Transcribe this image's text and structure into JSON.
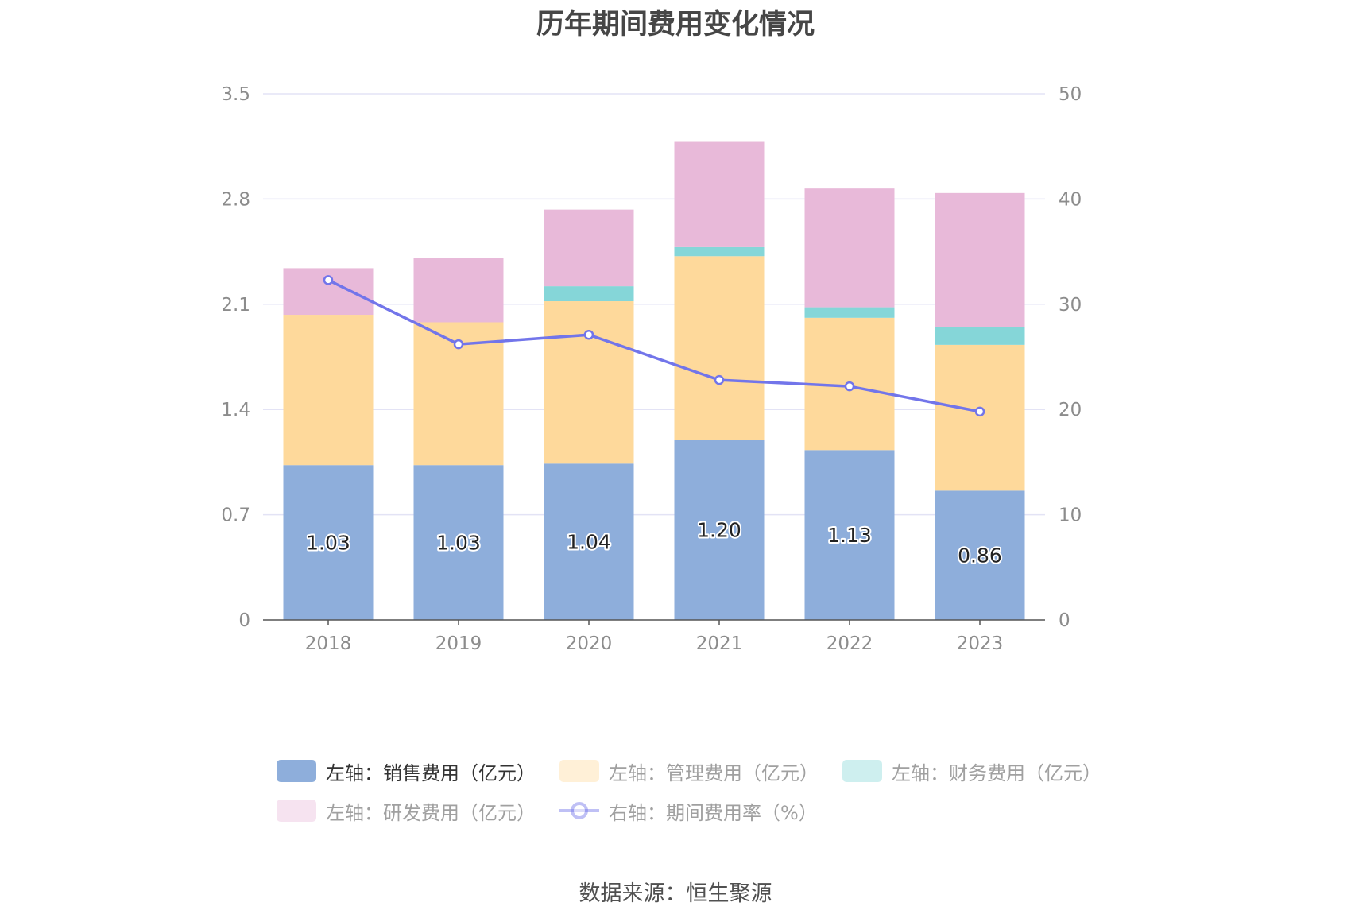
{
  "title": "历年期间费用变化情况",
  "source": "数据来源：恒生聚源",
  "chart_data": {
    "type": "bar",
    "stacked": true,
    "categories": [
      "2018",
      "2019",
      "2020",
      "2021",
      "2022",
      "2023"
    ],
    "series": [
      {
        "name": "左轴：销售费用（亿元）",
        "axis": "left",
        "type": "bar",
        "color": "#8eaedb",
        "values": [
          1.03,
          1.03,
          1.04,
          1.2,
          1.13,
          0.86
        ],
        "show_labels": true
      },
      {
        "name": "左轴：管理费用（亿元）",
        "axis": "left",
        "type": "bar",
        "color": "#fed99b",
        "values": [
          1.0,
          0.95,
          1.08,
          1.22,
          0.88,
          0.97
        ]
      },
      {
        "name": "左轴：财务费用（亿元）",
        "axis": "left",
        "type": "bar",
        "color": "#85d6d8",
        "values": [
          0.0,
          0.0,
          0.1,
          0.06,
          0.07,
          0.12
        ]
      },
      {
        "name": "左轴：研发费用（亿元）",
        "axis": "left",
        "type": "bar",
        "color": "#e8b9d9",
        "values": [
          0.31,
          0.43,
          0.51,
          0.7,
          0.79,
          0.89
        ]
      },
      {
        "name": "右轴：期间费用率（%）",
        "axis": "right",
        "type": "line",
        "color": "#7275ea",
        "values": [
          32.3,
          26.2,
          27.1,
          22.8,
          22.2,
          19.8
        ]
      }
    ],
    "y_left": {
      "ticks": [
        "0",
        "0.7",
        "1.4",
        "2.1",
        "2.8",
        "3.5"
      ],
      "min": 0,
      "max": 3.5
    },
    "y_right": {
      "ticks": [
        "0",
        "10",
        "20",
        "30",
        "40",
        "50"
      ],
      "min": 0,
      "max": 50
    },
    "grid": true,
    "legend_position": "bottom",
    "legend_active": [
      true,
      false,
      false,
      false,
      false
    ]
  }
}
